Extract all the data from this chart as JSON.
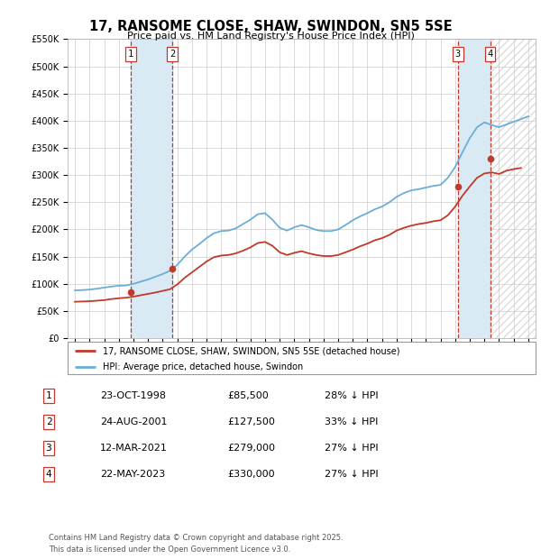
{
  "title": "17, RANSOME CLOSE, SHAW, SWINDON, SN5 5SE",
  "subtitle": "Price paid vs. HM Land Registry's House Price Index (HPI)",
  "ylabel_ticks": [
    "£0",
    "£50K",
    "£100K",
    "£150K",
    "£200K",
    "£250K",
    "£300K",
    "£350K",
    "£400K",
    "£450K",
    "£500K",
    "£550K"
  ],
  "ylim": [
    0,
    550000
  ],
  "xlim_start": 1994.5,
  "xlim_end": 2026.5,
  "transactions": [
    {
      "num": 1,
      "date": "23-OCT-1998",
      "price": 85500,
      "pct": "28%",
      "x": 1998.81
    },
    {
      "num": 2,
      "date": "24-AUG-2001",
      "price": 127500,
      "pct": "33%",
      "x": 2001.65
    },
    {
      "num": 3,
      "date": "12-MAR-2021",
      "price": 279000,
      "pct": "27%",
      "x": 2021.19
    },
    {
      "num": 4,
      "date": "22-MAY-2023",
      "price": 330000,
      "pct": "27%",
      "x": 2023.39
    }
  ],
  "legend_property": "17, RANSOME CLOSE, SHAW, SWINDON, SN5 5SE (detached house)",
  "legend_hpi": "HPI: Average price, detached house, Swindon",
  "footer1": "Contains HM Land Registry data © Crown copyright and database right 2025.",
  "footer2": "This data is licensed under the Open Government Licence v3.0.",
  "hpi_color": "#6aaed6",
  "property_color": "#c0392b",
  "shade_color": "#daeaf5",
  "marker_line_color": "#c0392b",
  "hatch_start": 2023.39,
  "hatch_end": 2026.5,
  "hpi_line": [
    [
      1995.0,
      88000
    ],
    [
      1995.5,
      88500
    ],
    [
      1996.0,
      89500
    ],
    [
      1996.5,
      91000
    ],
    [
      1997.0,
      93000
    ],
    [
      1997.5,
      95000
    ],
    [
      1998.0,
      96500
    ],
    [
      1998.5,
      97000
    ],
    [
      1999.0,
      100000
    ],
    [
      1999.5,
      104000
    ],
    [
      2000.0,
      108000
    ],
    [
      2000.5,
      113000
    ],
    [
      2001.0,
      118000
    ],
    [
      2001.5,
      124000
    ],
    [
      2002.0,
      135000
    ],
    [
      2002.5,
      150000
    ],
    [
      2003.0,
      163000
    ],
    [
      2003.5,
      173000
    ],
    [
      2004.0,
      184000
    ],
    [
      2004.5,
      193000
    ],
    [
      2005.0,
      197000
    ],
    [
      2005.5,
      198000
    ],
    [
      2006.0,
      202000
    ],
    [
      2006.5,
      210000
    ],
    [
      2007.0,
      218000
    ],
    [
      2007.5,
      228000
    ],
    [
      2008.0,
      230000
    ],
    [
      2008.5,
      218000
    ],
    [
      2009.0,
      203000
    ],
    [
      2009.5,
      198000
    ],
    [
      2010.0,
      204000
    ],
    [
      2010.5,
      208000
    ],
    [
      2011.0,
      204000
    ],
    [
      2011.5,
      199000
    ],
    [
      2012.0,
      197000
    ],
    [
      2012.5,
      197000
    ],
    [
      2013.0,
      200000
    ],
    [
      2013.5,
      208000
    ],
    [
      2014.0,
      217000
    ],
    [
      2014.5,
      224000
    ],
    [
      2015.0,
      230000
    ],
    [
      2015.5,
      237000
    ],
    [
      2016.0,
      242000
    ],
    [
      2016.5,
      250000
    ],
    [
      2017.0,
      260000
    ],
    [
      2017.5,
      267000
    ],
    [
      2018.0,
      272000
    ],
    [
      2018.5,
      274000
    ],
    [
      2019.0,
      277000
    ],
    [
      2019.5,
      280000
    ],
    [
      2020.0,
      282000
    ],
    [
      2020.5,
      295000
    ],
    [
      2021.0,
      315000
    ],
    [
      2021.5,
      342000
    ],
    [
      2022.0,
      368000
    ],
    [
      2022.5,
      388000
    ],
    [
      2023.0,
      397000
    ],
    [
      2023.5,
      392000
    ],
    [
      2024.0,
      388000
    ],
    [
      2024.5,
      393000
    ],
    [
      2025.0,
      398000
    ],
    [
      2025.5,
      403000
    ],
    [
      2026.0,
      408000
    ]
  ],
  "property_line": [
    [
      1995.0,
      67000
    ],
    [
      1995.5,
      67500
    ],
    [
      1996.0,
      68000
    ],
    [
      1996.5,
      69000
    ],
    [
      1997.0,
      70000
    ],
    [
      1997.5,
      72000
    ],
    [
      1998.0,
      73500
    ],
    [
      1998.5,
      74500
    ],
    [
      1999.0,
      76500
    ],
    [
      1999.5,
      79000
    ],
    [
      2000.0,
      81500
    ],
    [
      2000.5,
      84000
    ],
    [
      2001.0,
      87000
    ],
    [
      2001.5,
      90000
    ],
    [
      2002.0,
      99000
    ],
    [
      2002.5,
      111000
    ],
    [
      2003.0,
      121000
    ],
    [
      2003.5,
      131000
    ],
    [
      2004.0,
      141000
    ],
    [
      2004.5,
      149000
    ],
    [
      2005.0,
      152000
    ],
    [
      2005.5,
      153000
    ],
    [
      2006.0,
      156000
    ],
    [
      2006.5,
      161000
    ],
    [
      2007.0,
      167000
    ],
    [
      2007.5,
      175000
    ],
    [
      2008.0,
      177000
    ],
    [
      2008.5,
      170000
    ],
    [
      2009.0,
      158000
    ],
    [
      2009.5,
      153000
    ],
    [
      2010.0,
      157000
    ],
    [
      2010.5,
      160000
    ],
    [
      2011.0,
      156000
    ],
    [
      2011.5,
      153000
    ],
    [
      2012.0,
      151000
    ],
    [
      2012.5,
      151000
    ],
    [
      2013.0,
      153000
    ],
    [
      2013.5,
      158000
    ],
    [
      2014.0,
      163000
    ],
    [
      2014.5,
      169000
    ],
    [
      2015.0,
      174000
    ],
    [
      2015.5,
      180000
    ],
    [
      2016.0,
      184000
    ],
    [
      2016.5,
      190000
    ],
    [
      2017.0,
      198000
    ],
    [
      2017.5,
      203000
    ],
    [
      2018.0,
      207000
    ],
    [
      2018.5,
      210000
    ],
    [
      2019.0,
      212000
    ],
    [
      2019.5,
      215000
    ],
    [
      2020.0,
      217000
    ],
    [
      2020.5,
      226000
    ],
    [
      2021.0,
      242000
    ],
    [
      2021.5,
      262000
    ],
    [
      2022.0,
      279000
    ],
    [
      2022.5,
      295000
    ],
    [
      2023.0,
      303000
    ],
    [
      2023.5,
      305000
    ],
    [
      2024.0,
      302000
    ],
    [
      2024.5,
      308000
    ],
    [
      2025.0,
      311000
    ],
    [
      2025.5,
      313000
    ]
  ]
}
